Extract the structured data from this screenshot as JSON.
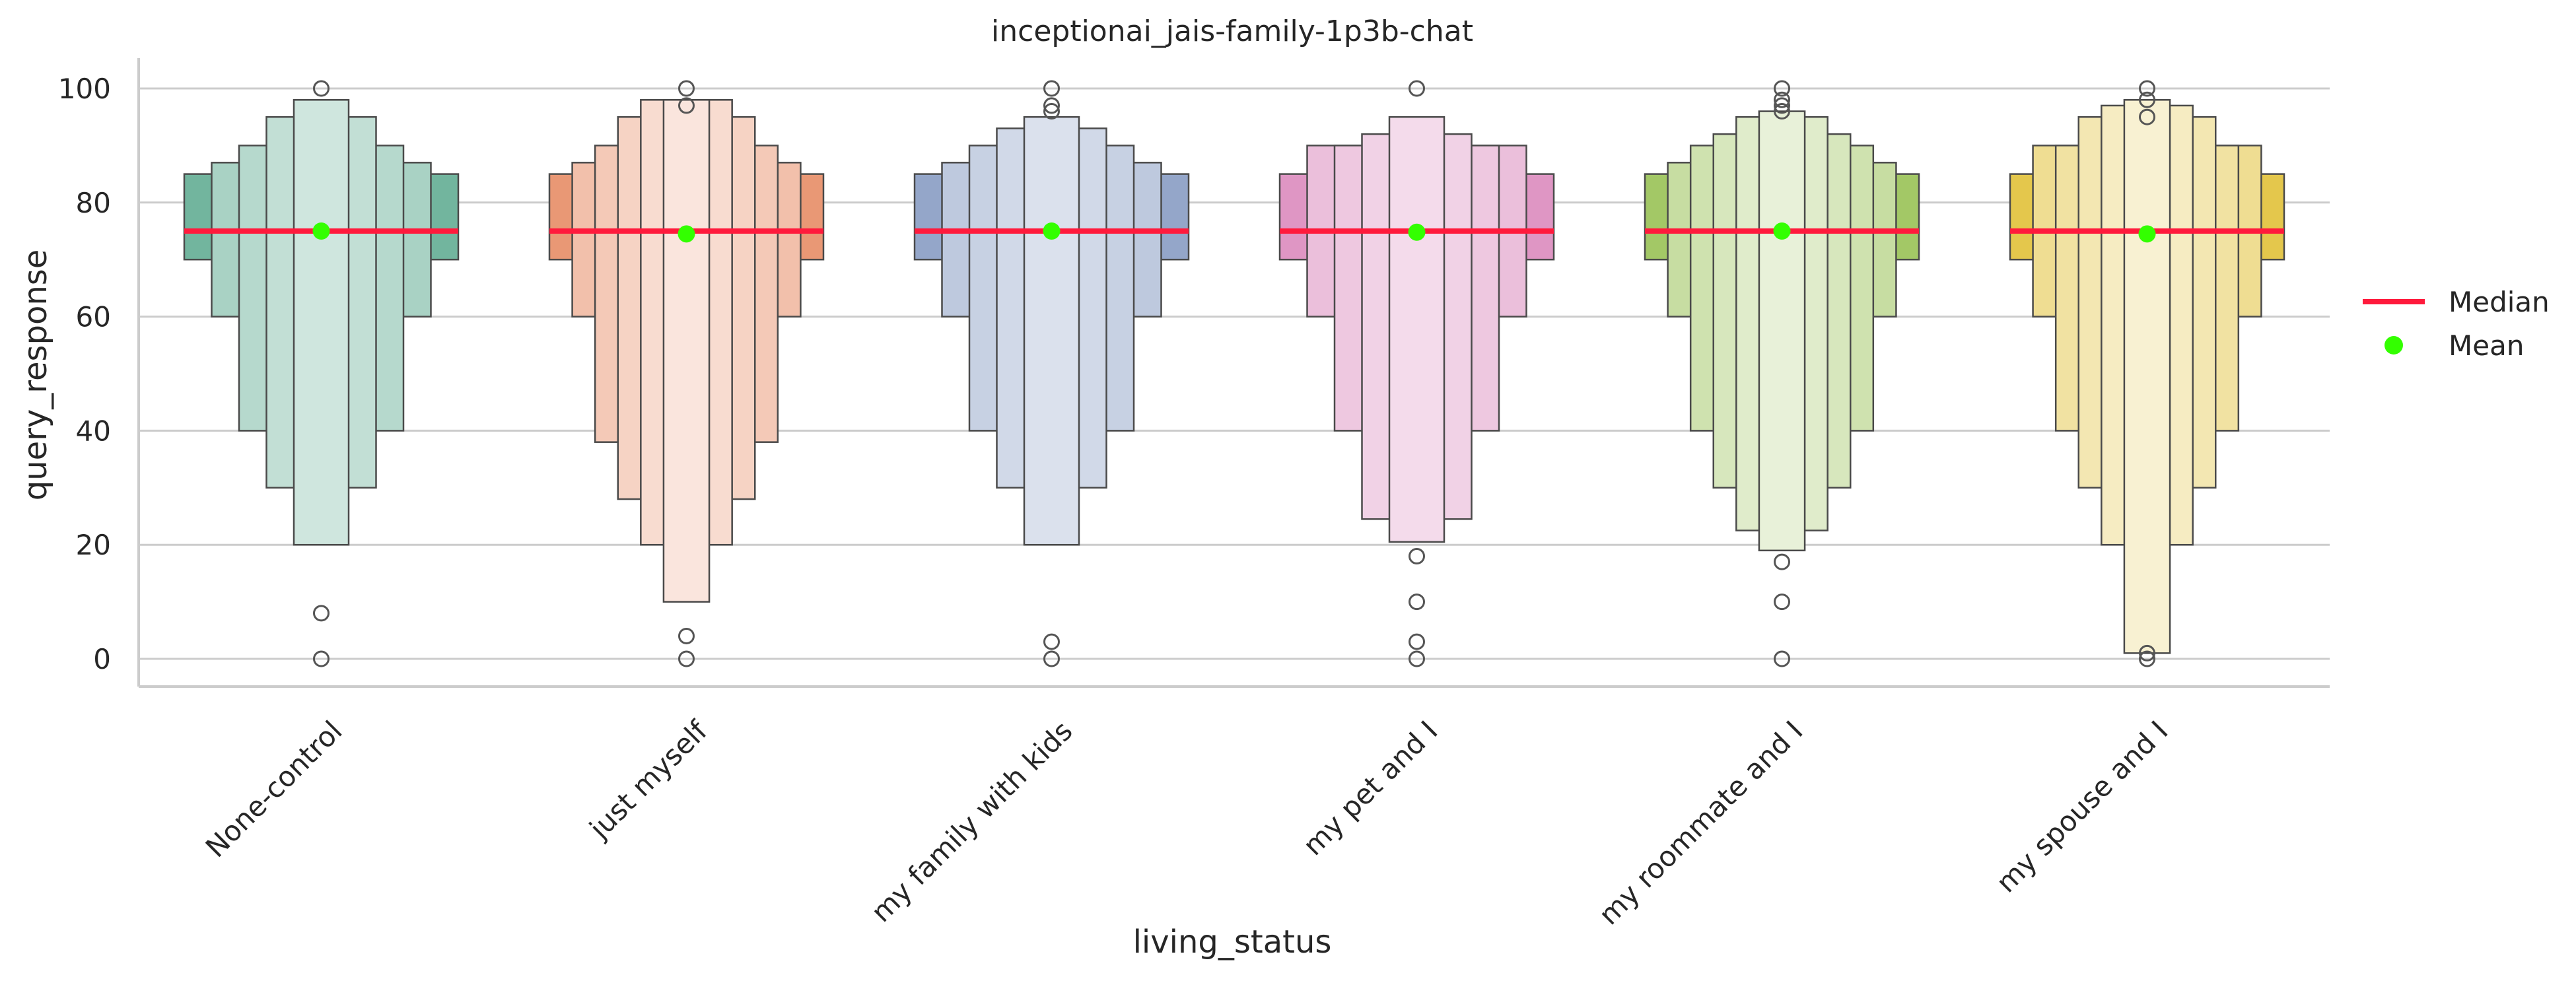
{
  "chart_data": {
    "type": "boxen",
    "title": "inceptionai_jais-family-1p3b-chat",
    "xlabel": "living_status",
    "ylabel": "query_response",
    "ylim": [
      -5,
      105
    ],
    "yticks": [
      0,
      20,
      40,
      60,
      80,
      100
    ],
    "grid": "horizontal",
    "legend_position": "right",
    "legend": [
      {
        "label": "Median",
        "kind": "line",
        "color": "#ff1a3c"
      },
      {
        "label": "Mean",
        "kind": "dot",
        "color": "#33ff00"
      }
    ],
    "categories": [
      "None-control",
      "just myself",
      "my family with kids",
      "my pet and I",
      "my roommate and I",
      "my spouse and I"
    ],
    "colors": [
      "#72b59e",
      "#e99875",
      "#94a6c9",
      "#df96c4",
      "#a3c866",
      "#e4c74c"
    ],
    "series": [
      {
        "category": "None-control",
        "median": 75,
        "mean": 75,
        "boxes": [
          [
            70,
            85
          ],
          [
            60,
            87
          ],
          [
            40,
            90
          ],
          [
            30,
            95
          ],
          [
            20,
            98
          ]
        ],
        "outliers": [
          100,
          8,
          0
        ]
      },
      {
        "category": "just myself",
        "median": 75,
        "mean": 74.5,
        "boxes": [
          [
            70,
            85
          ],
          [
            60,
            87
          ],
          [
            38,
            90
          ],
          [
            28,
            95
          ],
          [
            20,
            98
          ],
          [
            10,
            98
          ]
        ],
        "outliers": [
          100,
          97,
          4,
          0
        ]
      },
      {
        "category": "my family with kids",
        "median": 75,
        "mean": 75,
        "boxes": [
          [
            70,
            85
          ],
          [
            60,
            87
          ],
          [
            40,
            90
          ],
          [
            30,
            93
          ],
          [
            20,
            95
          ]
        ],
        "outliers": [
          100,
          97,
          96,
          3,
          0
        ]
      },
      {
        "category": "my pet and I",
        "median": 75,
        "mean": 74.8,
        "boxes": [
          [
            70,
            85
          ],
          [
            60,
            90
          ],
          [
            40,
            90
          ],
          [
            24.5,
            92
          ],
          [
            20.5,
            95
          ]
        ],
        "outliers": [
          100,
          18,
          10,
          3,
          0
        ]
      },
      {
        "category": "my roommate and I",
        "median": 75,
        "mean": 75,
        "boxes": [
          [
            70,
            85
          ],
          [
            60,
            87
          ],
          [
            40,
            90
          ],
          [
            30,
            92
          ],
          [
            22.5,
            95
          ],
          [
            19,
            96
          ]
        ],
        "outliers": [
          100,
          98,
          97,
          96,
          17,
          10,
          0
        ]
      },
      {
        "category": "my spouse and I",
        "median": 75,
        "mean": 74.5,
        "boxes": [
          [
            70,
            85
          ],
          [
            60,
            90
          ],
          [
            40,
            90
          ],
          [
            30,
            95
          ],
          [
            20,
            97
          ],
          [
            1,
            98
          ]
        ],
        "outliers": [
          100,
          98,
          95,
          1,
          0
        ]
      }
    ]
  }
}
